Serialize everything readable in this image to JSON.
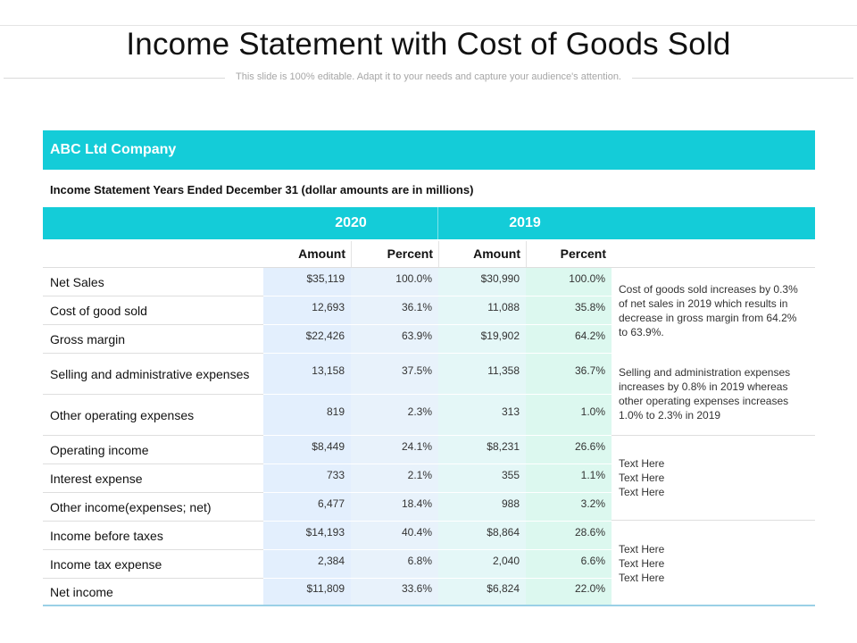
{
  "header": {
    "title": "Income Statement with Cost of Goods Sold",
    "subtitle": "This slide is 100% editable. Adapt it to your needs and capture your audience's attention."
  },
  "table": {
    "company": "ABC Ltd Company",
    "statement_title": "Income Statement Years Ended December 31 (dollar amounts are in millions)",
    "years": [
      "2020",
      "2019"
    ],
    "column_headers": [
      "Amount",
      "Percent",
      "Amount",
      "Percent"
    ],
    "rows": [
      {
        "label": "Net Sales",
        "amount_2020": "$35,119",
        "percent_2020": "100.0%",
        "amount_2019": "$30,990",
        "percent_2019": "100.0%"
      },
      {
        "label": "Cost of good sold",
        "amount_2020": "12,693",
        "percent_2020": "36.1%",
        "amount_2019": "11,088",
        "percent_2019": "35.8%"
      },
      {
        "label": "Gross margin",
        "amount_2020": "$22,426",
        "percent_2020": "63.9%",
        "amount_2019": "$19,902",
        "percent_2019": "64.2%"
      },
      {
        "label": "Selling and administrative expenses",
        "amount_2020": "13,158",
        "percent_2020": "37.5%",
        "amount_2019": "11,358",
        "percent_2019": "36.7%"
      },
      {
        "label": "Other operating expenses",
        "amount_2020": "819",
        "percent_2020": "2.3%",
        "amount_2019": "313",
        "percent_2019": "1.0%"
      },
      {
        "label": "Operating income",
        "amount_2020": "$8,449",
        "percent_2020": "24.1%",
        "amount_2019": "$8,231",
        "percent_2019": "26.6%"
      },
      {
        "label": "Interest expense",
        "amount_2020": "733",
        "percent_2020": "2.1%",
        "amount_2019": "355",
        "percent_2019": "1.1%"
      },
      {
        "label": "Other income(expenses; net)",
        "amount_2020": "6,477",
        "percent_2020": "18.4%",
        "amount_2019": "988",
        "percent_2019": "3.2%"
      },
      {
        "label": "Income before taxes",
        "amount_2020": "$14,193",
        "percent_2020": "40.4%",
        "amount_2019": "$8,864",
        "percent_2019": "28.6%"
      },
      {
        "label": "Income tax expense",
        "amount_2020": "2,384",
        "percent_2020": "6.8%",
        "amount_2019": "2,040",
        "percent_2019": "6.6%"
      },
      {
        "label": "Net income",
        "amount_2020": "$11,809",
        "percent_2020": "33.6%",
        "amount_2019": "$6,824",
        "percent_2019": "22.0%"
      }
    ],
    "notes": [
      "Cost of goods sold increases by 0.3% of net sales  in 2019 which results in decrease in gross margin from 64.2% to 63.9%.",
      "Selling and administration expenses increases by 0.8% in 2019 whereas other operating expenses increases 1.0% to 2.3% in 2019",
      [
        "Text Here",
        "Text Here",
        "Text Here"
      ],
      [
        "Text Here",
        "Text Here",
        "Text Here"
      ]
    ]
  },
  "colors": {
    "accent": "#14ccd8",
    "band_amount_2020": "#e3effd",
    "band_percent_2020": "#e8f2fb",
    "band_amount_2019": "#e4f7f7",
    "band_percent_2019": "#dcf8ef"
  }
}
